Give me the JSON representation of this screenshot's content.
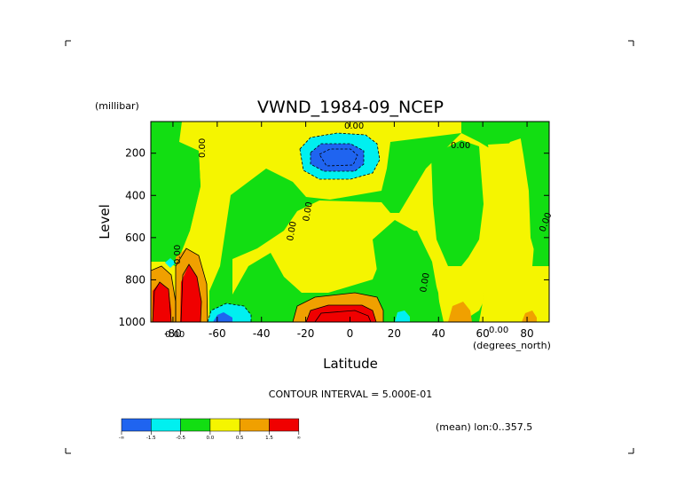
{
  "chart_data": {
    "type": "heatmap",
    "title": "VWND_1984-09_NCEP",
    "xlabel": "Latitude",
    "ylabel": "Level",
    "x_units": "(degrees_north)",
    "y_units": "(millibar)",
    "xlim": [
      -90,
      90
    ],
    "ylim": [
      1000,
      50
    ],
    "y_reversed": true,
    "x_ticks": [
      "-80",
      "-60",
      "-40",
      "-20",
      "0",
      "20",
      "40",
      "60",
      "80"
    ],
    "y_ticks": [
      "200",
      "400",
      "600",
      "800",
      "1000"
    ],
    "contour_interval_text": "CONTOUR INTERVAL = 5.000E-01",
    "region_text": "(mean) lon:0..357.5",
    "contour_labels": [
      "0.00",
      "0.00",
      "0.00",
      "0.00",
      "0.00",
      "0.00",
      "0.00",
      "0.00",
      "0.00",
      "0.00"
    ],
    "grid": false,
    "legend_position": "bottom-left",
    "levels": [
      {
        "label": "-∞",
        "color": "#1f64f0"
      },
      {
        "label": "-1.5",
        "color": "#00f0f0"
      },
      {
        "label": "-0.5",
        "color": "#12de12"
      },
      {
        "label": "0.0",
        "color": "#f5f500"
      },
      {
        "label": "0.5",
        "color": "#f0a000"
      },
      {
        "label": "1.5",
        "color": "#f00000"
      },
      {
        "label": "∞",
        "color": null
      }
    ],
    "features": [
      {
        "kind": "jet",
        "sign": "negative",
        "lat_range": [
          -16,
          12
        ],
        "level_range": [
          130,
          270
        ],
        "min_value": -1.5
      },
      {
        "kind": "jet",
        "sign": "positive",
        "lat_range": [
          -90,
          -80
        ],
        "level_range": [
          750,
          1000
        ],
        "max_value": 1.5
      },
      {
        "kind": "jet",
        "sign": "positive",
        "lat_range": [
          -83,
          -67
        ],
        "level_range": [
          650,
          1000
        ],
        "max_value": 1.5
      },
      {
        "kind": "jet",
        "sign": "positive",
        "lat_range": [
          -27,
          16
        ],
        "level_range": [
          840,
          1000
        ],
        "max_value": 1.5
      },
      {
        "kind": "jet",
        "sign": "negative",
        "lat_range": [
          -64,
          -47
        ],
        "level_range": [
          860,
          1000
        ],
        "min_value": -1.5
      }
    ]
  }
}
